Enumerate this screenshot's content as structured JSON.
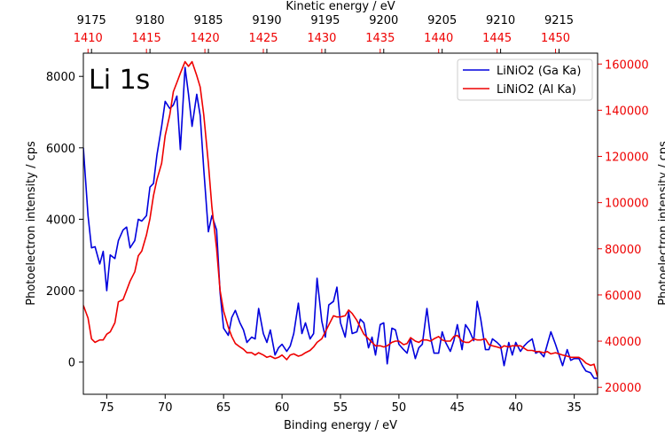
{
  "chart_data": {
    "type": "line",
    "annotation": "Li 1s",
    "xlabel": "Binding energy / eV",
    "ylabel": "Photoelectron intensity / cps",
    "ylabel_right": "Photoelectron intensity / cps",
    "top_axis_label": "Kinetic energy / eV",
    "xlim": [
      77,
      33
    ],
    "ylim": [
      -900,
      8650
    ],
    "ylim_right": [
      17000,
      164700
    ],
    "x_ticks": [
      75,
      70,
      65,
      60,
      55,
      50,
      45,
      40,
      35
    ],
    "y_ticks": [
      0,
      2000,
      4000,
      6000,
      8000
    ],
    "y_ticks_right": [
      20000,
      40000,
      60000,
      80000,
      100000,
      120000,
      140000,
      160000
    ],
    "top_ticks_black": [
      {
        "label": "9175",
        "binding": 76.3
      },
      {
        "label": "9180",
        "binding": 71.3
      },
      {
        "label": "9185",
        "binding": 66.3
      },
      {
        "label": "9190",
        "binding": 61.3
      },
      {
        "label": "9195",
        "binding": 56.3
      },
      {
        "label": "9200",
        "binding": 51.3
      },
      {
        "label": "9205",
        "binding": 46.3
      },
      {
        "label": "9210",
        "binding": 41.3
      },
      {
        "label": "9215",
        "binding": 36.3
      }
    ],
    "top_ticks_red": [
      {
        "label": "1410",
        "binding": 76.6
      },
      {
        "label": "1415",
        "binding": 71.6
      },
      {
        "label": "1420",
        "binding": 66.6
      },
      {
        "label": "1425",
        "binding": 61.6
      },
      {
        "label": "1430",
        "binding": 56.6
      },
      {
        "label": "1435",
        "binding": 51.6
      },
      {
        "label": "1440",
        "binding": 46.6
      },
      {
        "label": "1445",
        "binding": 41.6
      },
      {
        "label": "1450",
        "binding": 36.6
      }
    ],
    "legend_position": "top-right",
    "series": [
      {
        "name": "LiNiO2 (Ga Ka)",
        "color": "#0000dd",
        "axis": "left",
        "points": [
          [
            77.0,
            6000
          ],
          [
            76.6,
            4100
          ],
          [
            76.3,
            3200
          ],
          [
            76.0,
            3230
          ],
          [
            75.6,
            2750
          ],
          [
            75.3,
            3100
          ],
          [
            75.0,
            2000
          ],
          [
            74.7,
            3000
          ],
          [
            74.3,
            2900
          ],
          [
            74.0,
            3400
          ],
          [
            73.6,
            3700
          ],
          [
            73.3,
            3780
          ],
          [
            73.0,
            3200
          ],
          [
            72.6,
            3400
          ],
          [
            72.3,
            4000
          ],
          [
            72.0,
            3950
          ],
          [
            71.6,
            4100
          ],
          [
            71.3,
            4900
          ],
          [
            71.0,
            5000
          ],
          [
            70.7,
            5800
          ],
          [
            70.3,
            6600
          ],
          [
            70.0,
            7300
          ],
          [
            69.6,
            7100
          ],
          [
            69.3,
            7200
          ],
          [
            69.0,
            7450
          ],
          [
            68.7,
            5950
          ],
          [
            68.3,
            8250
          ],
          [
            68.0,
            7500
          ],
          [
            67.7,
            6600
          ],
          [
            67.3,
            7500
          ],
          [
            67.0,
            6900
          ],
          [
            66.7,
            5400
          ],
          [
            66.3,
            3650
          ],
          [
            66.0,
            4100
          ],
          [
            65.6,
            3700
          ],
          [
            65.3,
            1950
          ],
          [
            65.0,
            950
          ],
          [
            64.6,
            750
          ],
          [
            64.3,
            1250
          ],
          [
            64.0,
            1450
          ],
          [
            63.6,
            1100
          ],
          [
            63.3,
            900
          ],
          [
            63.0,
            550
          ],
          [
            62.6,
            700
          ],
          [
            62.3,
            650
          ],
          [
            62.0,
            1500
          ],
          [
            61.6,
            800
          ],
          [
            61.3,
            550
          ],
          [
            61.0,
            900
          ],
          [
            60.6,
            200
          ],
          [
            60.3,
            400
          ],
          [
            60.0,
            500
          ],
          [
            59.6,
            300
          ],
          [
            59.3,
            450
          ],
          [
            59.0,
            800
          ],
          [
            58.6,
            1650
          ],
          [
            58.3,
            800
          ],
          [
            58.0,
            1100
          ],
          [
            57.6,
            650
          ],
          [
            57.3,
            800
          ],
          [
            57.0,
            2350
          ],
          [
            56.6,
            1150
          ],
          [
            56.3,
            700
          ],
          [
            56.0,
            1600
          ],
          [
            55.6,
            1700
          ],
          [
            55.3,
            2100
          ],
          [
            55.0,
            1100
          ],
          [
            54.6,
            700
          ],
          [
            54.3,
            1400
          ],
          [
            54.0,
            800
          ],
          [
            53.6,
            850
          ],
          [
            53.3,
            1200
          ],
          [
            53.0,
            1100
          ],
          [
            52.6,
            400
          ],
          [
            52.3,
            700
          ],
          [
            52.0,
            200
          ],
          [
            51.6,
            1050
          ],
          [
            51.3,
            1100
          ],
          [
            51.0,
            -50
          ],
          [
            50.6,
            950
          ],
          [
            50.3,
            900
          ],
          [
            50.0,
            500
          ],
          [
            49.6,
            350
          ],
          [
            49.3,
            250
          ],
          [
            49.0,
            650
          ],
          [
            48.6,
            100
          ],
          [
            48.3,
            400
          ],
          [
            48.0,
            500
          ],
          [
            47.6,
            1500
          ],
          [
            47.3,
            700
          ],
          [
            47.0,
            250
          ],
          [
            46.6,
            250
          ],
          [
            46.3,
            850
          ],
          [
            46.0,
            550
          ],
          [
            45.6,
            300
          ],
          [
            45.3,
            600
          ],
          [
            45.0,
            1050
          ],
          [
            44.6,
            350
          ],
          [
            44.3,
            1050
          ],
          [
            44.0,
            900
          ],
          [
            43.6,
            600
          ],
          [
            43.3,
            1700
          ],
          [
            43.0,
            1200
          ],
          [
            42.6,
            350
          ],
          [
            42.3,
            350
          ],
          [
            42.0,
            650
          ],
          [
            41.6,
            550
          ],
          [
            41.3,
            450
          ],
          [
            41.0,
            -100
          ],
          [
            40.6,
            550
          ],
          [
            40.3,
            200
          ],
          [
            40.0,
            550
          ],
          [
            39.6,
            300
          ],
          [
            39.3,
            450
          ],
          [
            39.0,
            550
          ],
          [
            38.6,
            650
          ],
          [
            38.3,
            250
          ],
          [
            38.0,
            300
          ],
          [
            37.6,
            150
          ],
          [
            37.3,
            500
          ],
          [
            37.0,
            850
          ],
          [
            36.6,
            500
          ],
          [
            36.3,
            200
          ],
          [
            36.0,
            -100
          ],
          [
            35.6,
            350
          ],
          [
            35.3,
            50
          ],
          [
            35.0,
            100
          ],
          [
            34.6,
            100
          ],
          [
            34.3,
            -100
          ],
          [
            34.0,
            -250
          ],
          [
            33.6,
            -300
          ],
          [
            33.3,
            -450
          ],
          [
            33.0,
            -450
          ]
        ]
      },
      {
        "name": "LiNiO2 (Al Ka)",
        "color": "#ee0000",
        "axis": "right",
        "points": [
          [
            77.0,
            55500
          ],
          [
            76.6,
            50000
          ],
          [
            76.3,
            41000
          ],
          [
            76.0,
            39500
          ],
          [
            75.6,
            40500
          ],
          [
            75.3,
            40500
          ],
          [
            75.0,
            43000
          ],
          [
            74.7,
            44000
          ],
          [
            74.3,
            48000
          ],
          [
            74.0,
            57000
          ],
          [
            73.6,
            58000
          ],
          [
            73.3,
            62000
          ],
          [
            73.0,
            66000
          ],
          [
            72.6,
            70000
          ],
          [
            72.3,
            77000
          ],
          [
            72.0,
            79000
          ],
          [
            71.6,
            86000
          ],
          [
            71.3,
            93000
          ],
          [
            71.0,
            103000
          ],
          [
            70.7,
            110000
          ],
          [
            70.3,
            117000
          ],
          [
            70.0,
            129000
          ],
          [
            69.6,
            138000
          ],
          [
            69.3,
            148000
          ],
          [
            69.0,
            152000
          ],
          [
            68.7,
            156000
          ],
          [
            68.3,
            161000
          ],
          [
            68.0,
            159000
          ],
          [
            67.7,
            161000
          ],
          [
            67.3,
            155000
          ],
          [
            67.0,
            150000
          ],
          [
            66.7,
            138000
          ],
          [
            66.3,
            117000
          ],
          [
            66.0,
            98000
          ],
          [
            65.6,
            80000
          ],
          [
            65.3,
            62000
          ],
          [
            65.0,
            53000
          ],
          [
            64.6,
            46000
          ],
          [
            64.3,
            42000
          ],
          [
            64.0,
            39000
          ],
          [
            63.6,
            37500
          ],
          [
            63.3,
            36500
          ],
          [
            63.0,
            35000
          ],
          [
            62.6,
            35000
          ],
          [
            62.3,
            34000
          ],
          [
            62.0,
            35000
          ],
          [
            61.6,
            34000
          ],
          [
            61.3,
            33000
          ],
          [
            61.0,
            33500
          ],
          [
            60.6,
            32500
          ],
          [
            60.3,
            33000
          ],
          [
            60.0,
            34000
          ],
          [
            59.6,
            32000
          ],
          [
            59.3,
            34000
          ],
          [
            59.0,
            34500
          ],
          [
            58.6,
            33500
          ],
          [
            58.3,
            34000
          ],
          [
            58.0,
            35000
          ],
          [
            57.6,
            36000
          ],
          [
            57.3,
            37500
          ],
          [
            57.0,
            39500
          ],
          [
            56.6,
            41000
          ],
          [
            56.3,
            44000
          ],
          [
            56.0,
            47000
          ],
          [
            55.6,
            51000
          ],
          [
            55.3,
            50500
          ],
          [
            55.0,
            50500
          ],
          [
            54.6,
            51000
          ],
          [
            54.3,
            53500
          ],
          [
            54.0,
            52000
          ],
          [
            53.6,
            49000
          ],
          [
            53.3,
            46000
          ],
          [
            53.0,
            43000
          ],
          [
            52.6,
            41000
          ],
          [
            52.3,
            39500
          ],
          [
            52.0,
            38000
          ],
          [
            51.6,
            38000
          ],
          [
            51.3,
            37500
          ],
          [
            51.0,
            38000
          ],
          [
            50.6,
            39500
          ],
          [
            50.3,
            40000
          ],
          [
            50.0,
            40000
          ],
          [
            49.6,
            38500
          ],
          [
            49.3,
            39000
          ],
          [
            49.0,
            41500
          ],
          [
            48.6,
            40000
          ],
          [
            48.3,
            39500
          ],
          [
            48.0,
            40500
          ],
          [
            47.6,
            40500
          ],
          [
            47.3,
            40000
          ],
          [
            47.0,
            41000
          ],
          [
            46.6,
            42000
          ],
          [
            46.3,
            40500
          ],
          [
            46.0,
            40000
          ],
          [
            45.6,
            40000
          ],
          [
            45.3,
            42000
          ],
          [
            45.0,
            42500
          ],
          [
            44.6,
            40000
          ],
          [
            44.3,
            39500
          ],
          [
            44.0,
            39500
          ],
          [
            43.6,
            41000
          ],
          [
            43.3,
            40500
          ],
          [
            43.0,
            40500
          ],
          [
            42.6,
            41000
          ],
          [
            42.3,
            38500
          ],
          [
            42.0,
            38000
          ],
          [
            41.6,
            37500
          ],
          [
            41.3,
            37000
          ],
          [
            41.0,
            38000
          ],
          [
            40.6,
            37500
          ],
          [
            40.3,
            38000
          ],
          [
            40.0,
            38000
          ],
          [
            39.6,
            38000
          ],
          [
            39.3,
            37000
          ],
          [
            39.0,
            36000
          ],
          [
            38.6,
            36000
          ],
          [
            38.3,
            35500
          ],
          [
            38.0,
            35500
          ],
          [
            37.6,
            35000
          ],
          [
            37.3,
            35500
          ],
          [
            37.0,
            34500
          ],
          [
            36.6,
            35000
          ],
          [
            36.3,
            34500
          ],
          [
            36.0,
            34000
          ],
          [
            35.6,
            33500
          ],
          [
            35.3,
            33000
          ],
          [
            35.0,
            33000
          ],
          [
            34.6,
            33000
          ],
          [
            34.3,
            32000
          ],
          [
            34.0,
            30500
          ],
          [
            33.6,
            29500
          ],
          [
            33.3,
            30000
          ],
          [
            33.0,
            24500
          ]
        ]
      }
    ]
  }
}
